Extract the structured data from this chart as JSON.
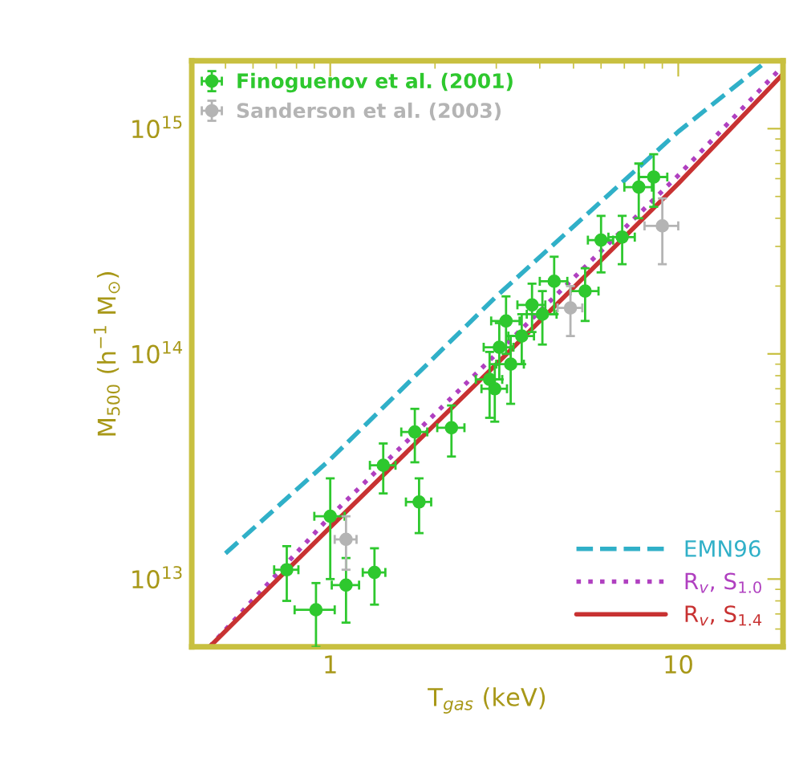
{
  "chart_data": {
    "type": "scatter",
    "xlabel": "T$_{gas}$ (keV)",
    "ylabel": "M$_{500}$ (h$^{−1}$ M$_{⊙}$)",
    "log": "xy",
    "xlim": [
      0.4,
      20
    ],
    "ylim": [
      5000000000000.0,
      2000000000000000.0
    ],
    "xticks": [
      1,
      10
    ],
    "yticks": [
      {
        "value": 10000000000000.0,
        "label": "10$^{13}$"
      },
      {
        "value": 100000000000000.0,
        "label": "10$^{14}$"
      },
      {
        "value": 1000000000000000.0,
        "label": "10$^{15}$"
      }
    ],
    "legend": "top left",
    "grid": false,
    "series": [
      {
        "name": "Finoguenov et al. (2001)",
        "color": "#2ec82e",
        "marker": "circle",
        "x": [
          0.75,
          0.91,
          1.0,
          1.11,
          1.34,
          1.42,
          1.75,
          1.8,
          2.23,
          2.87,
          2.97,
          3.06,
          3.2,
          3.3,
          3.55,
          3.8,
          4.07,
          4.4,
          5.4,
          6.0,
          6.9,
          7.7,
          8.5
        ],
        "values": [
          11000000000000.0,
          7300000000000.0,
          19000000000000.0,
          9400000000000.0,
          10700000000000.0,
          32000000000000.0,
          45000000000000.0,
          22000000000000.0,
          47000000000000.0,
          77000000000000.0,
          70000000000000.0,
          107000000000000.0,
          140000000000000.0,
          90000000000000.0,
          120000000000000.0,
          165000000000000.0,
          150000000000000.0,
          210000000000000.0,
          190000000000000.0,
          320000000000000.0,
          330000000000000.0,
          550000000000000.0,
          610000000000000.0
        ],
        "errors": [
          3000000000000.0,
          2300000000000.0,
          9000000000000.0,
          3000000000000.0,
          3000000000000.0,
          8000000000000.0,
          12000000000000.0,
          6000000000000.0,
          12000000000000.0,
          25000000000000.0,
          20000000000000.0,
          30000000000000.0,
          40000000000000.0,
          30000000000000.0,
          30000000000000.0,
          40000000000000.0,
          40000000000000.0,
          60000000000000.0,
          50000000000000.0,
          90000000000000.0,
          80000000000000.0,
          150000000000000.0,
          160000000000000.0
        ],
        "xerrors": [
          0.06,
          0.12,
          0.1,
          0.1,
          0.1,
          0.12,
          0.15,
          0.15,
          0.2,
          0.25,
          0.25,
          0.3,
          0.3,
          0.3,
          0.3,
          0.35,
          0.4,
          0.4,
          0.5,
          0.5,
          0.6,
          0.7,
          0.8
        ]
      },
      {
        "name": "Sanderson et al. (2003)",
        "color": "#b4b4b4",
        "marker": "circle",
        "x": [
          1.11,
          4.9,
          9.0
        ],
        "values": [
          15000000000000.0,
          160000000000000.0,
          370000000000000.0
        ],
        "errors": [
          4000000000000.0,
          40000000000000.0,
          120000000000000.0
        ],
        "xerrors": [
          0.08,
          0.4,
          1.0
        ]
      },
      {
        "name": "EMN96",
        "color": "#30b0c8",
        "type": "line",
        "line_style": "dashed",
        "x": [
          0.5,
          1,
          3,
          10,
          18
        ],
        "values": [
          13000000000000.0,
          34000000000000.0,
          180000000000000.0,
          970000000000000.0,
          2000000000000000.0
        ]
      },
      {
        "name": "R$_{v}$, S$_{1.0}$",
        "color": "#b040c0",
        "type": "line",
        "line_style": "dotted",
        "x": [
          0.45,
          1,
          3,
          10,
          20
        ],
        "values": [
          5000000000000.0,
          19000000000000.0,
          100000000000000.0,
          620000000000000.0,
          1900000000000000.0
        ]
      },
      {
        "name": "R$_{v}$, S$_{1.4}$",
        "color": "#c83232",
        "type": "line",
        "line_style": "solid",
        "x": [
          0.45,
          1,
          3,
          10,
          20
        ],
        "values": [
          5000000000000.0,
          17000000000000.0,
          90000000000000.0,
          570000000000000.0,
          1750000000000000.0
        ]
      }
    ]
  }
}
